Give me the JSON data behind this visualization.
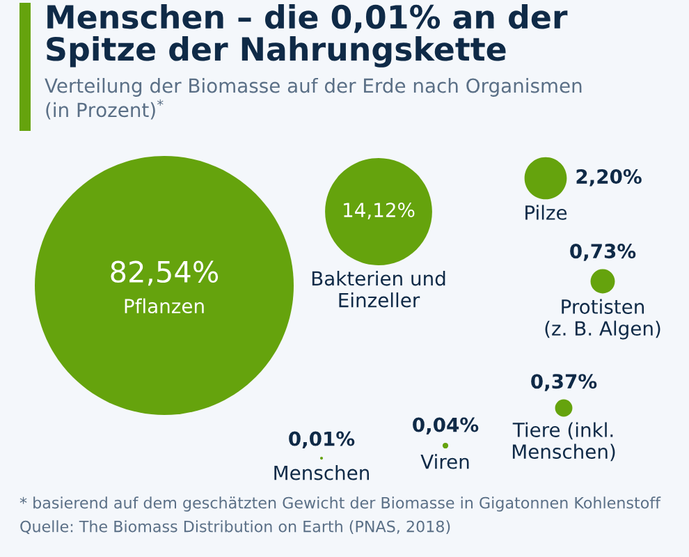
{
  "chart_data": {
    "type": "other",
    "title": "Menschen – die 0,01% an der\nSpitze der Nahrungskette",
    "subtitle": "Verteilung der Biomasse auf der Erde nach Organismen\n(in Prozent)$^{*}$",
    "categories": [
      "Pflanzen",
      "Bakterien und\nEinzeller",
      "Pilze",
      "Protisten\n(z. B. Algen)",
      "Tiere (inkl.\nMenschen)",
      "Viren",
      "Menschen"
    ],
    "values": [
      82.54,
      14.12,
      2.2,
      0.73,
      0.37,
      0.04,
      0.01
    ],
    "value_labels": [
      "82,54%",
      "14,12%",
      "2,20%",
      "0,73%",
      "0,37%",
      "0,04%",
      "0,01%"
    ],
    "color": "#65a30d",
    "annotations": [
      "* basierend auf dem geschätzten Gewicht der Biomasse in Gigatonnen Kohlenstoff",
      "Quelle: The Biomass Distribution on Earth (PNAS, 2018)"
    ]
  }
}
